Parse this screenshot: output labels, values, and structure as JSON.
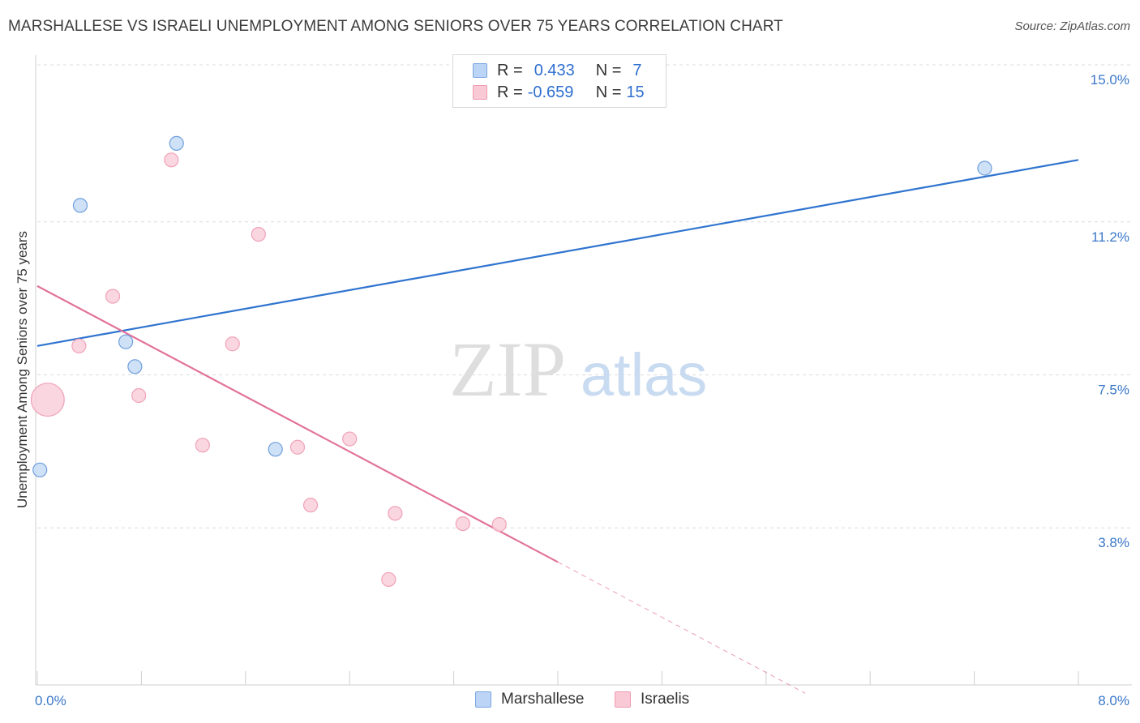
{
  "title": "MARSHALLESE VS ISRAELI UNEMPLOYMENT AMONG SENIORS OVER 75 YEARS CORRELATION CHART",
  "source": "Source: ZipAtlas.com",
  "watermark": {
    "zip": "ZIP",
    "atlas": "atlas"
  },
  "legend": {
    "r_label": "R =",
    "n_label": "N =",
    "rows": [
      {
        "name": "Marshallese",
        "r": "0.433",
        "n": "7",
        "fill": "#bcd4f5",
        "stroke": "#7aa6e0"
      },
      {
        "name": "Israelis",
        "r": "-0.659",
        "n": "15",
        "fill": "#f9c9d6",
        "stroke": "#ee9ab2"
      }
    ]
  },
  "colors": {
    "blue": "#2f74cf",
    "pink": "#e2729a",
    "blue_point_fill": "#c6dcf6",
    "blue_point_stroke": "#6f9fdc",
    "pink_point_fill": "#f9cfdb",
    "pink_point_stroke": "#f0a2b8",
    "grid": "#dcdcdc",
    "tick_label": "#3a78c9"
  },
  "chart_data": {
    "type": "scatter",
    "title": "MARSHALLESE VS ISRAELI UNEMPLOYMENT AMONG SENIORS OVER 75 YEARS CORRELATION CHART",
    "xlabel": "",
    "ylabel": "Unemployment Among Seniors over 75 years",
    "xlim": [
      0.0,
      8.0
    ],
    "ylim": [
      0.0,
      15.0
    ],
    "x_tick_labels": [
      "0.0%",
      "8.0%"
    ],
    "y_ticks": [
      {
        "value": 15.0,
        "label": "15.0%"
      },
      {
        "value": 11.2,
        "label": "11.2%"
      },
      {
        "value": 7.5,
        "label": "7.5%"
      },
      {
        "value": 3.8,
        "label": "3.8%"
      }
    ],
    "grid": true,
    "legend_position": "top-center",
    "series": [
      {
        "name": "Marshallese",
        "r": 0.433,
        "n": 7,
        "points": [
          {
            "x": 0.02,
            "y": 5.2,
            "size": 1
          },
          {
            "x": 0.33,
            "y": 11.6,
            "size": 1
          },
          {
            "x": 0.68,
            "y": 8.3,
            "size": 1
          },
          {
            "x": 0.75,
            "y": 7.7,
            "size": 1
          },
          {
            "x": 1.07,
            "y": 13.1,
            "size": 1
          },
          {
            "x": 1.83,
            "y": 5.7,
            "size": 1
          },
          {
            "x": 7.28,
            "y": 12.5,
            "size": 1
          }
        ],
        "trend": {
          "x0": 0.0,
          "y0": 8.2,
          "x1": 8.0,
          "y1": 12.7,
          "dashed_from": null
        }
      },
      {
        "name": "Israelis",
        "r": -0.659,
        "n": 15,
        "points": [
          {
            "x": 0.08,
            "y": 6.9,
            "size": 2.4
          },
          {
            "x": 0.32,
            "y": 8.2,
            "size": 1
          },
          {
            "x": 0.58,
            "y": 9.4,
            "size": 1
          },
          {
            "x": 0.78,
            "y": 7.0,
            "size": 1
          },
          {
            "x": 1.03,
            "y": 12.7,
            "size": 1
          },
          {
            "x": 1.27,
            "y": 5.8,
            "size": 1
          },
          {
            "x": 1.5,
            "y": 8.25,
            "size": 1
          },
          {
            "x": 1.7,
            "y": 10.9,
            "size": 1
          },
          {
            "x": 2.0,
            "y": 5.75,
            "size": 1
          },
          {
            "x": 2.1,
            "y": 4.35,
            "size": 1
          },
          {
            "x": 2.4,
            "y": 5.95,
            "size": 1
          },
          {
            "x": 2.7,
            "y": 2.55,
            "size": 1
          },
          {
            "x": 2.75,
            "y": 4.15,
            "size": 1
          },
          {
            "x": 3.27,
            "y": 3.9,
            "size": 1
          },
          {
            "x": 3.55,
            "y": 3.88,
            "size": 1
          }
        ],
        "trend": {
          "x0": 0.0,
          "y0": 9.65,
          "x1": 5.9,
          "y1": -0.2,
          "dashed_from": 4.0
        }
      }
    ]
  }
}
